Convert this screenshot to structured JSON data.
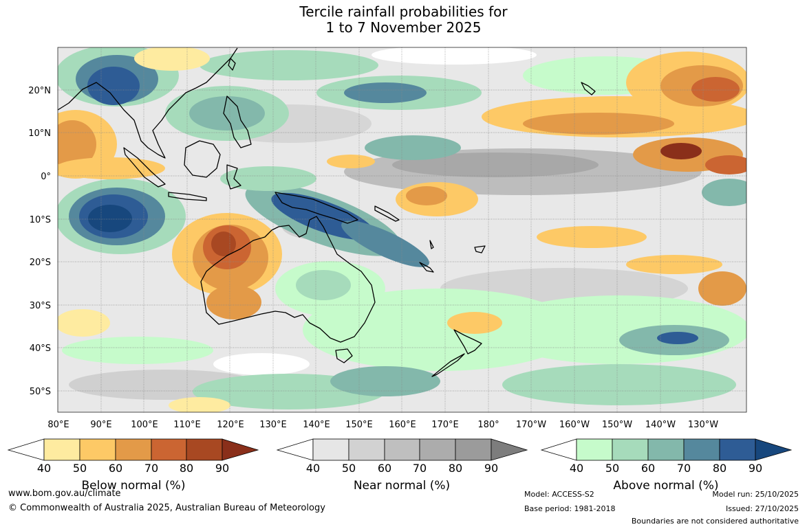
{
  "title": {
    "line1": "Tercile rainfall probabilities for",
    "line2": "1 to 7 November 2025"
  },
  "map": {
    "lon_labels": [
      "80°E",
      "90°E",
      "100°E",
      "110°E",
      "120°E",
      "130°E",
      "140°E",
      "150°E",
      "160°E",
      "170°E",
      "180°",
      "170°W",
      "160°W",
      "150°W",
      "140°W",
      "130°W"
    ],
    "lat_labels": [
      "20°N",
      "10°N",
      "0°",
      "10°S",
      "20°S",
      "30°S",
      "40°S",
      "50°S"
    ],
    "lon_range_deg_east": [
      80,
      240
    ],
    "lat_range": [
      -55,
      30
    ]
  },
  "legends": [
    {
      "label": "Below normal (%)",
      "ticks": [
        "40",
        "50",
        "60",
        "70",
        "80",
        "90"
      ],
      "colors": [
        "#ffffff",
        "#feeba0",
        "#fdc966",
        "#e39a48",
        "#cb6532",
        "#a84822",
        "#8a2f1a"
      ]
    },
    {
      "label": "Near normal (%)",
      "ticks": [
        "40",
        "50",
        "60",
        "70",
        "80",
        "90"
      ],
      "colors": [
        "#ffffff",
        "#e6e6e6",
        "#d2d2d2",
        "#bfbfbf",
        "#acacac",
        "#9b9b9b",
        "#7d7d7d"
      ]
    },
    {
      "label": "Above normal (%)",
      "ticks": [
        "40",
        "50",
        "60",
        "70",
        "80",
        "90"
      ],
      "colors": [
        "#ffffff",
        "#c6fbcb",
        "#a6dbbb",
        "#83b8ab",
        "#55889d",
        "#2e5c95",
        "#17477d"
      ]
    }
  ],
  "footer": {
    "website": "www.bom.gov.au/climate",
    "copyright": "© Commonwealth of Australia 2025, Australian Bureau of Meteorology",
    "model": "Model: ACCESS-S2",
    "base_period": "Base period: 1981-2018",
    "model_run": "Model run: 25/10/2025",
    "issued": "Issued: 27/10/2025",
    "disclaimer": "Boundaries are not considered authoritative"
  }
}
